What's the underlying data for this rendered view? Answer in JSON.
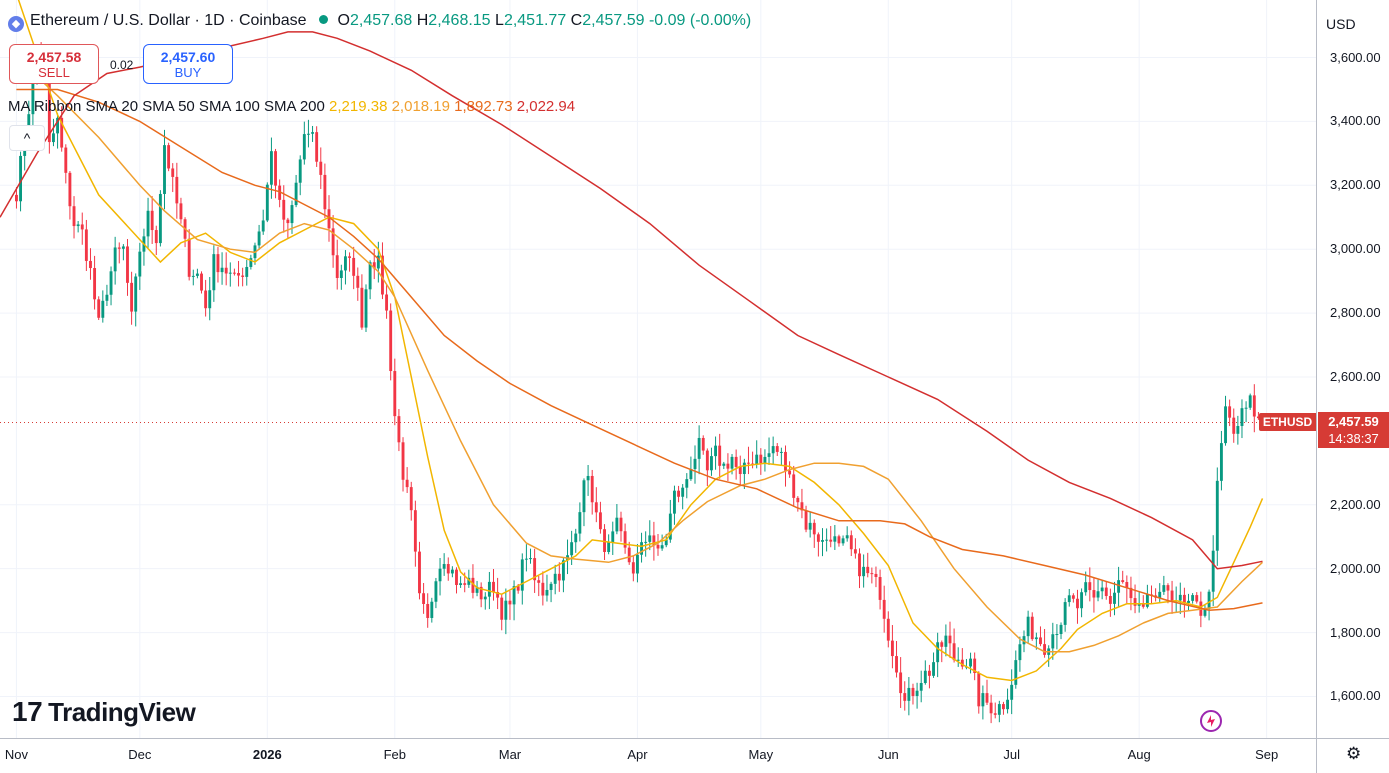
{
  "header": {
    "symbol": "Ethereum / U.S. Dollar · 1D · Coinbase",
    "logo_char": "◆",
    "ohlc": [
      {
        "k": "O",
        "v": "2,457.68"
      },
      {
        "k": "H",
        "v": "2,468.15"
      },
      {
        "k": "L",
        "v": "2,451.77"
      },
      {
        "k": "C",
        "v": "2,457.59"
      }
    ],
    "change": "-0.09 (-0.00%)"
  },
  "trade": {
    "sell_price": "2,457.58",
    "sell_label": "SELL",
    "buy_price": "2,457.60",
    "buy_label": "BUY",
    "spread": "0.02"
  },
  "ma_legend": {
    "label": "MA Ribbon SMA 20 SMA 50 SMA 100 SMA 200",
    "values": [
      {
        "v": "2,219.38",
        "color": "#f2b600"
      },
      {
        "v": "2,018.19",
        "color": "#f0a030"
      },
      {
        "v": "1,892.73",
        "color": "#e86a1c"
      },
      {
        "v": "2,022.94",
        "color": "#d32f2f"
      }
    ]
  },
  "collapse_glyph": "^",
  "brand": {
    "mark": "17",
    "name": "TradingView"
  },
  "price_scale": {
    "currency": "USD",
    "ticks": [
      "3,600.00",
      "3,400.00",
      "3,200.00",
      "3,000.00",
      "2,800.00",
      "2,600.00",
      "2,200.00",
      "2,000.00",
      "1,800.00",
      "1,600.00"
    ],
    "last_price": "2,457.59",
    "countdown": "14:38:37",
    "symbol_tag": "ETHUSD"
  },
  "time_scale": {
    "ticks": [
      "Nov",
      "Dec",
      "2026",
      "Feb",
      "Mar",
      "Apr",
      "May",
      "Jun",
      "Jul",
      "Aug",
      "Sep"
    ]
  },
  "settings_glyph": "⚙",
  "chart_data": {
    "type": "candlestick",
    "y_range": [
      1470,
      3780
    ],
    "x_range_days": [
      -4,
      316
    ],
    "x_labels": [
      {
        "label": "Nov",
        "day": 0
      },
      {
        "label": "Dec",
        "day": 30
      },
      {
        "label": "2026",
        "day": 61
      },
      {
        "label": "Feb",
        "day": 92
      },
      {
        "label": "Mar",
        "day": 120
      },
      {
        "label": "Apr",
        "day": 151
      },
      {
        "label": "May",
        "day": 181
      },
      {
        "label": "Jun",
        "day": 212
      },
      {
        "label": "Jul",
        "day": 242
      },
      {
        "label": "Aug",
        "day": 273
      },
      {
        "label": "Sep",
        "day": 304
      }
    ],
    "anchors": [
      [
        0,
        3180
      ],
      [
        3,
        3440
      ],
      [
        5,
        3600
      ],
      [
        7,
        3540
      ],
      [
        8,
        3320
      ],
      [
        10,
        3400
      ],
      [
        12,
        3220
      ],
      [
        14,
        3080
      ],
      [
        16,
        3050
      ],
      [
        18,
        2930
      ],
      [
        20,
        2760
      ],
      [
        22,
        2880
      ],
      [
        24,
        2980
      ],
      [
        26,
        3000
      ],
      [
        28,
        2780
      ],
      [
        30,
        3000
      ],
      [
        32,
        3100
      ],
      [
        34,
        3040
      ],
      [
        36,
        3330
      ],
      [
        38,
        3200
      ],
      [
        40,
        3080
      ],
      [
        42,
        2940
      ],
      [
        44,
        2920
      ],
      [
        46,
        2820
      ],
      [
        48,
        2960
      ],
      [
        50,
        2950
      ],
      [
        53,
        2900
      ],
      [
        56,
        2950
      ],
      [
        58,
        3020
      ],
      [
        60,
        3100
      ],
      [
        62,
        3300
      ],
      [
        64,
        3130
      ],
      [
        66,
        3060
      ],
      [
        68,
        3200
      ],
      [
        70,
        3360
      ],
      [
        72,
        3340
      ],
      [
        74,
        3220
      ],
      [
        76,
        3060
      ],
      [
        78,
        2920
      ],
      [
        80,
        2960
      ],
      [
        82,
        2940
      ],
      [
        84,
        2780
      ],
      [
        86,
        2980
      ],
      [
        88,
        2950
      ],
      [
        90,
        2800
      ],
      [
        92,
        2480
      ],
      [
        94,
        2300
      ],
      [
        96,
        2160
      ],
      [
        98,
        1900
      ],
      [
        100,
        1830
      ],
      [
        102,
        1990
      ],
      [
        104,
        2040
      ],
      [
        106,
        1990
      ],
      [
        108,
        1940
      ],
      [
        110,
        1960
      ],
      [
        112,
        1920
      ],
      [
        114,
        1920
      ],
      [
        116,
        1950
      ],
      [
        118,
        1870
      ],
      [
        120,
        1880
      ],
      [
        122,
        1960
      ],
      [
        124,
        2050
      ],
      [
        126,
        1960
      ],
      [
        128,
        1930
      ],
      [
        130,
        1970
      ],
      [
        132,
        1990
      ],
      [
        134,
        2030
      ],
      [
        136,
        2110
      ],
      [
        138,
        2300
      ],
      [
        140,
        2230
      ],
      [
        142,
        2100
      ],
      [
        144,
        2060
      ],
      [
        146,
        2130
      ],
      [
        148,
        2050
      ],
      [
        150,
        2000
      ],
      [
        152,
        2060
      ],
      [
        154,
        2120
      ],
      [
        156,
        2040
      ],
      [
        158,
        2100
      ],
      [
        160,
        2230
      ],
      [
        162,
        2240
      ],
      [
        164,
        2330
      ],
      [
        166,
        2380
      ],
      [
        168,
        2300
      ],
      [
        170,
        2360
      ],
      [
        172,
        2320
      ],
      [
        174,
        2350
      ],
      [
        176,
        2280
      ],
      [
        178,
        2330
      ],
      [
        180,
        2360
      ],
      [
        182,
        2340
      ],
      [
        184,
        2380
      ],
      [
        186,
        2350
      ],
      [
        188,
        2280
      ],
      [
        190,
        2220
      ],
      [
        192,
        2140
      ],
      [
        194,
        2120
      ],
      [
        196,
        2080
      ],
      [
        198,
        2110
      ],
      [
        200,
        2060
      ],
      [
        202,
        2080
      ],
      [
        204,
        2020
      ],
      [
        206,
        1990
      ],
      [
        208,
        1970
      ],
      [
        210,
        1930
      ],
      [
        212,
        1800
      ],
      [
        214,
        1700
      ],
      [
        216,
        1580
      ],
      [
        218,
        1620
      ],
      [
        220,
        1660
      ],
      [
        222,
        1680
      ],
      [
        224,
        1740
      ],
      [
        226,
        1780
      ],
      [
        228,
        1720
      ],
      [
        230,
        1720
      ],
      [
        232,
        1700
      ],
      [
        234,
        1590
      ],
      [
        236,
        1580
      ],
      [
        238,
        1560
      ],
      [
        240,
        1580
      ],
      [
        242,
        1650
      ],
      [
        244,
        1760
      ],
      [
        246,
        1820
      ],
      [
        248,
        1790
      ],
      [
        250,
        1760
      ],
      [
        252,
        1800
      ],
      [
        254,
        1840
      ],
      [
        256,
        1900
      ],
      [
        258,
        1880
      ],
      [
        260,
        1930
      ],
      [
        262,
        1900
      ],
      [
        264,
        1950
      ],
      [
        266,
        1890
      ],
      [
        268,
        1960
      ],
      [
        270,
        1930
      ],
      [
        272,
        1870
      ],
      [
        274,
        1860
      ],
      [
        276,
        1920
      ],
      [
        278,
        1900
      ],
      [
        280,
        1940
      ],
      [
        282,
        1910
      ],
      [
        284,
        1880
      ],
      [
        286,
        1890
      ],
      [
        288,
        1870
      ],
      [
        290,
        1910
      ],
      [
        292,
        2250
      ],
      [
        294,
        2500
      ],
      [
        296,
        2420
      ],
      [
        298,
        2480
      ],
      [
        300,
        2520
      ],
      [
        302,
        2460
      ],
      [
        303,
        2457.59
      ]
    ],
    "ma_series": [
      {
        "period": 20,
        "color": "#f2b600",
        "points": [
          [
            0,
            3800
          ],
          [
            10,
            3420
          ],
          [
            20,
            3170
          ],
          [
            30,
            3030
          ],
          [
            35,
            2960
          ],
          [
            40,
            3020
          ],
          [
            46,
            3050
          ],
          [
            52,
            2990
          ],
          [
            58,
            2960
          ],
          [
            64,
            3020
          ],
          [
            70,
            3060
          ],
          [
            76,
            3100
          ],
          [
            82,
            3080
          ],
          [
            88,
            3000
          ],
          [
            92,
            2850
          ],
          [
            96,
            2600
          ],
          [
            100,
            2350
          ],
          [
            104,
            2120
          ],
          [
            108,
            1990
          ],
          [
            112,
            1940
          ],
          [
            118,
            1920
          ],
          [
            124,
            1960
          ],
          [
            130,
            2000
          ],
          [
            136,
            2040
          ],
          [
            140,
            2090
          ],
          [
            146,
            2080
          ],
          [
            152,
            2070
          ],
          [
            158,
            2090
          ],
          [
            164,
            2200
          ],
          [
            170,
            2280
          ],
          [
            176,
            2320
          ],
          [
            182,
            2330
          ],
          [
            188,
            2320
          ],
          [
            194,
            2270
          ],
          [
            200,
            2200
          ],
          [
            206,
            2110
          ],
          [
            212,
            2010
          ],
          [
            218,
            1830
          ],
          [
            224,
            1750
          ],
          [
            230,
            1700
          ],
          [
            236,
            1660
          ],
          [
            242,
            1650
          ],
          [
            248,
            1680
          ],
          [
            254,
            1750
          ],
          [
            258,
            1810
          ],
          [
            264,
            1860
          ],
          [
            270,
            1890
          ],
          [
            276,
            1890
          ],
          [
            282,
            1900
          ],
          [
            288,
            1880
          ],
          [
            292,
            1910
          ],
          [
            296,
            2020
          ],
          [
            300,
            2130
          ],
          [
            303,
            2220
          ]
        ]
      },
      {
        "period": 50,
        "color": "#f0a030",
        "points": [
          [
            0,
            3600
          ],
          [
            10,
            3480
          ],
          [
            20,
            3350
          ],
          [
            30,
            3200
          ],
          [
            36,
            3120
          ],
          [
            44,
            3030
          ],
          [
            52,
            3000
          ],
          [
            58,
            2990
          ],
          [
            64,
            3050
          ],
          [
            70,
            3080
          ],
          [
            76,
            3060
          ],
          [
            82,
            3000
          ],
          [
            88,
            2930
          ],
          [
            92,
            2850
          ],
          [
            100,
            2620
          ],
          [
            108,
            2400
          ],
          [
            116,
            2200
          ],
          [
            124,
            2080
          ],
          [
            130,
            2040
          ],
          [
            136,
            2030
          ],
          [
            144,
            2020
          ],
          [
            150,
            2040
          ],
          [
            156,
            2080
          ],
          [
            162,
            2150
          ],
          [
            168,
            2210
          ],
          [
            176,
            2260
          ],
          [
            182,
            2280
          ],
          [
            188,
            2310
          ],
          [
            194,
            2330
          ],
          [
            200,
            2330
          ],
          [
            206,
            2320
          ],
          [
            212,
            2280
          ],
          [
            220,
            2150
          ],
          [
            228,
            2000
          ],
          [
            236,
            1880
          ],
          [
            244,
            1780
          ],
          [
            250,
            1740
          ],
          [
            256,
            1740
          ],
          [
            262,
            1760
          ],
          [
            268,
            1790
          ],
          [
            274,
            1830
          ],
          [
            280,
            1860
          ],
          [
            286,
            1870
          ],
          [
            292,
            1880
          ],
          [
            298,
            1960
          ],
          [
            303,
            2020
          ]
        ]
      },
      {
        "period": 100,
        "color": "#e86a1c",
        "points": [
          [
            0,
            3500
          ],
          [
            10,
            3500
          ],
          [
            20,
            3460
          ],
          [
            30,
            3400
          ],
          [
            40,
            3320
          ],
          [
            50,
            3240
          ],
          [
            58,
            3200
          ],
          [
            64,
            3180
          ],
          [
            70,
            3140
          ],
          [
            76,
            3100
          ],
          [
            82,
            3040
          ],
          [
            88,
            2970
          ],
          [
            96,
            2850
          ],
          [
            104,
            2730
          ],
          [
            112,
            2650
          ],
          [
            120,
            2580
          ],
          [
            130,
            2510
          ],
          [
            140,
            2450
          ],
          [
            150,
            2390
          ],
          [
            160,
            2330
          ],
          [
            170,
            2280
          ],
          [
            180,
            2250
          ],
          [
            190,
            2190
          ],
          [
            200,
            2150
          ],
          [
            210,
            2150
          ],
          [
            216,
            2140
          ],
          [
            222,
            2100
          ],
          [
            230,
            2060
          ],
          [
            240,
            2040
          ],
          [
            250,
            2010
          ],
          [
            260,
            1980
          ],
          [
            270,
            1940
          ],
          [
            280,
            1900
          ],
          [
            290,
            1870
          ],
          [
            296,
            1875
          ],
          [
            303,
            1893
          ]
        ]
      },
      {
        "period": 200,
        "color": "#d32f2f",
        "points": [
          [
            -4,
            3100
          ],
          [
            5,
            3300
          ],
          [
            14,
            3480
          ],
          [
            22,
            3550
          ],
          [
            30,
            3570
          ],
          [
            40,
            3600
          ],
          [
            50,
            3630
          ],
          [
            60,
            3660
          ],
          [
            66,
            3680
          ],
          [
            72,
            3680
          ],
          [
            78,
            3660
          ],
          [
            86,
            3620
          ],
          [
            96,
            3560
          ],
          [
            106,
            3480
          ],
          [
            118,
            3390
          ],
          [
            130,
            3290
          ],
          [
            142,
            3190
          ],
          [
            154,
            3080
          ],
          [
            166,
            2950
          ],
          [
            178,
            2840
          ],
          [
            190,
            2730
          ],
          [
            200,
            2670
          ],
          [
            212,
            2600
          ],
          [
            224,
            2530
          ],
          [
            236,
            2430
          ],
          [
            246,
            2340
          ],
          [
            256,
            2270
          ],
          [
            266,
            2220
          ],
          [
            276,
            2160
          ],
          [
            286,
            2090
          ],
          [
            292,
            2000
          ],
          [
            298,
            2010
          ],
          [
            303,
            2023
          ]
        ]
      }
    ]
  }
}
